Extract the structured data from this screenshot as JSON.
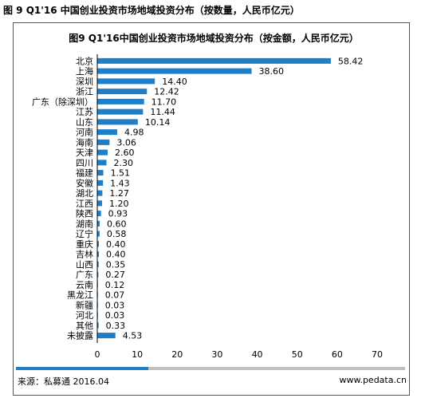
{
  "figure_title": "图 9 Q1'16 中国创业投资市场地域投资分布（按数量，人民币亿元）",
  "chart_data": {
    "type": "bar",
    "orientation": "horizontal",
    "title": "图9 Q1'16中国创业投资市场地域投资分布（按金额，人民币亿元）",
    "categories": [
      "北京",
      "上海",
      "深圳",
      "浙江",
      "广东（除深圳）",
      "江苏",
      "山东",
      "河南",
      "海南",
      "天津",
      "四川",
      "福建",
      "安徽",
      "湖北",
      "江西",
      "陕西",
      "湖南",
      "辽宁",
      "重庆",
      "吉林",
      "山西",
      "广东",
      "云南",
      "黑龙江",
      "新疆",
      "河北",
      "其他",
      "未披露"
    ],
    "values": [
      58.42,
      38.6,
      14.4,
      12.42,
      11.7,
      11.44,
      10.14,
      4.98,
      3.06,
      2.6,
      2.3,
      1.51,
      1.43,
      1.27,
      1.2,
      0.93,
      0.6,
      0.58,
      0.4,
      0.4,
      0.35,
      0.27,
      0.12,
      0.07,
      0.03,
      0.03,
      0.33,
      4.53
    ],
    "value_labels": [
      "58.42",
      "38.60",
      "14.40",
      "12.42",
      "11.70",
      "11.44",
      "10.14",
      "4.98",
      "3.06",
      "2.60",
      "2.30",
      "1.51",
      "1.43",
      "1.27",
      "1.20",
      "0.93",
      "0.60",
      "0.58",
      "0.40",
      "0.40",
      "0.35",
      "0.27",
      "0.12",
      "0.07",
      "0.03",
      "0.03",
      "0.33",
      "4.53"
    ],
    "xlim": [
      0,
      70
    ],
    "x_ticks": [
      "0",
      "10",
      "20",
      "30",
      "40",
      "50",
      "60",
      "70"
    ],
    "bar_color": "#1f7ec8",
    "grid": false,
    "legend": "none"
  },
  "footer": {
    "source": "来源：私募通 2016.04",
    "site": "www.pedata.cn"
  },
  "colors": {
    "accent_bar": "#1f7ec8",
    "gray_bar": "#bfbfbf"
  }
}
